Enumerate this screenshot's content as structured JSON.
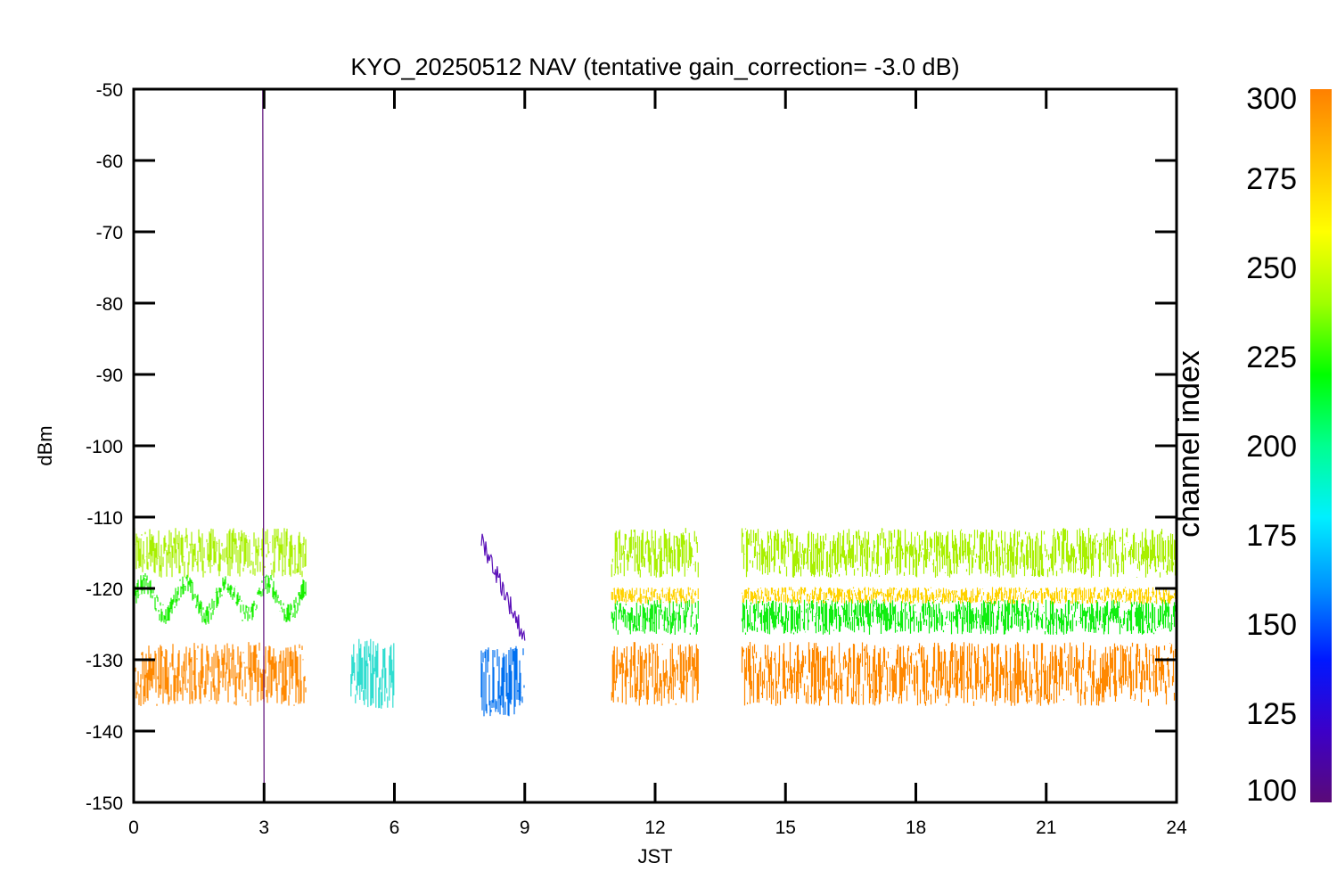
{
  "chart_data": {
    "type": "line",
    "title": "KYO_20250512 NAV (tentative gain_correction= -3.0 dB)",
    "xlabel": "JST",
    "ylabel": "dBm",
    "xlim": [
      0,
      24
    ],
    "ylim": [
      -150,
      -50
    ],
    "x_ticks": [
      "0",
      "3",
      "6",
      "9",
      "12",
      "15",
      "18",
      "21",
      "24"
    ],
    "y_ticks": [
      "-50",
      "-60",
      "-70",
      "-80",
      "-90",
      "-100",
      "-110",
      "-120",
      "-130",
      "-140",
      "-150"
    ],
    "grid": false,
    "colorbar": {
      "label": "channel index",
      "range": [
        100,
        300
      ],
      "ticks": [
        "300",
        "275",
        "250",
        "225",
        "200",
        "175",
        "150",
        "125",
        "100"
      ],
      "colormap": [
        "#5a0a78",
        "#3c00c8",
        "#0018ff",
        "#0090ff",
        "#00f0ff",
        "#00ff90",
        "#00ff00",
        "#a0ff00",
        "#ffff00",
        "#ffc000",
        "#ff8000"
      ]
    },
    "series": [
      {
        "channel": 260,
        "color": "#a8f000",
        "segments": [
          [
            0,
            3.97
          ],
          [
            11,
            13
          ],
          [
            14,
            24
          ]
        ],
        "mean": -115,
        "spread": 3.5
      },
      {
        "channel": 235,
        "color": "#18f000",
        "segments": [
          [
            0,
            3.97
          ]
        ],
        "mean": -121.5,
        "spread": 1.5,
        "oscillating": true
      },
      {
        "channel": 235,
        "color": "#10ee10",
        "segments": [
          [
            11,
            13
          ],
          [
            14,
            24
          ]
        ],
        "mean": -124,
        "spread": 2.5
      },
      {
        "channel": 285,
        "color": "#ffd200",
        "segments": [
          [
            11,
            13
          ],
          [
            14,
            24
          ]
        ],
        "mean": -121,
        "spread": 1.2
      },
      {
        "channel": 300,
        "color": "#ff8800",
        "segments": [
          [
            0,
            3.97
          ],
          [
            11,
            13
          ],
          [
            14,
            24
          ]
        ],
        "mean": -132,
        "spread": 4.5
      },
      {
        "channel": 185,
        "color": "#30ddd0",
        "segments": [
          [
            5,
            6
          ]
        ],
        "mean": -132,
        "spread": 5
      },
      {
        "channel": 160,
        "color": "#0070f0",
        "segments": [
          [
            8,
            9
          ]
        ],
        "mean": -133,
        "spread": 5
      },
      {
        "channel": 110,
        "color": "#5a10b8",
        "segments": [
          [
            8,
            9
          ]
        ],
        "start": -113,
        "end": -127
      },
      {
        "channel": 100,
        "color": "#5a0a78",
        "segments": [
          [
            2.97,
            3.0
          ]
        ],
        "start": -50,
        "end": -150
      }
    ]
  }
}
